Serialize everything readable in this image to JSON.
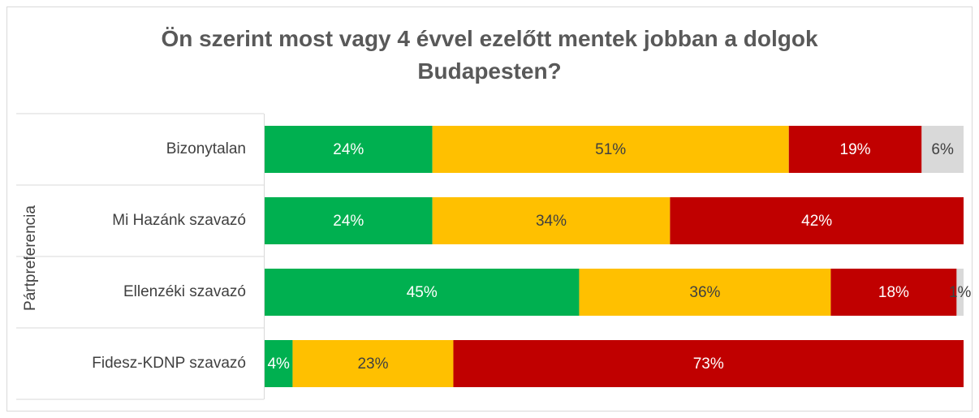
{
  "chart_data": {
    "type": "stacked_barh",
    "title": "Ön szerint most vagy 4 évvel ezelőtt mentek jobban a dolgok Budapesten?",
    "ylabel": "Pártpreferencia",
    "categories": [
      "Bizonytalan",
      "Mi Hazánk szavazó",
      "Ellenzéki szavazó",
      "Fidesz-KDNP szavazó"
    ],
    "xlim": [
      0,
      100
    ],
    "series": [
      {
        "color": "#00b050",
        "label_color": "#ffffff",
        "values": [
          24,
          24,
          45,
          4
        ],
        "value_labels": [
          "24%",
          "24%",
          "45%",
          "4%"
        ]
      },
      {
        "color": "#ffc000",
        "label_color": "#404040",
        "values": [
          51,
          34,
          36,
          23
        ],
        "value_labels": [
          "51%",
          "34%",
          "36%",
          "23%"
        ]
      },
      {
        "color": "#c00000",
        "label_color": "#ffffff",
        "values": [
          19,
          42,
          18,
          73
        ],
        "value_labels": [
          "19%",
          "42%",
          "18%",
          "73%"
        ]
      },
      {
        "color": "#d9d9d9",
        "label_color": "#404040",
        "values": [
          6,
          0,
          1,
          0
        ],
        "value_labels": [
          "6%",
          null,
          "1%",
          null
        ]
      }
    ]
  }
}
